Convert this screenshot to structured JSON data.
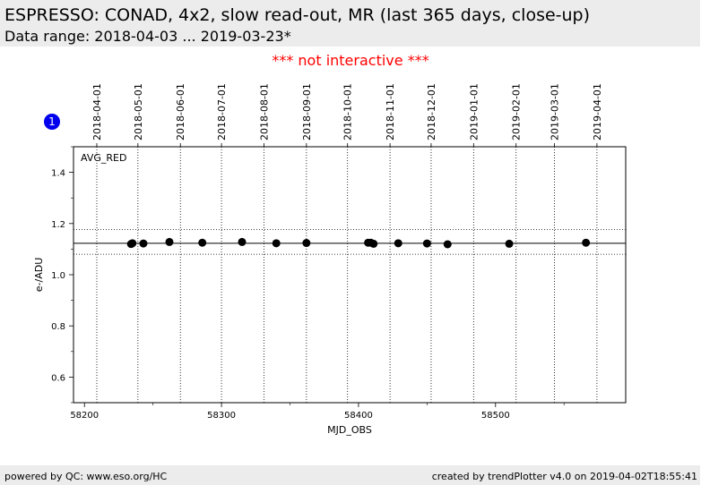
{
  "header": {
    "title": "ESPRESSO: CONAD, 4x2, slow read-out, MR (last 365 days, close-up)",
    "subtitle": "Data range: 2018-04-03 ... 2019-03-23*"
  },
  "notice": "*** not interactive ***",
  "footer": {
    "left": "powered by QC: www.eso.org/HC",
    "right": "created by trendPlotter v4.0 on 2019-04-02T18:55:41"
  },
  "badge": {
    "label": "1",
    "color": "#0000ee"
  },
  "chart_data": {
    "type": "scatter",
    "xlabel": "MJD_OBS",
    "ylabel": "e-/ADU",
    "annotation": "AVG_RED",
    "xlim": [
      58192,
      58595
    ],
    "ylim": [
      0.5,
      1.5
    ],
    "x_ticks": [
      58200,
      58300,
      58400,
      58500
    ],
    "y_ticks": [
      0.6,
      0.8,
      1.0,
      1.2,
      1.4
    ],
    "top_axis_dates": [
      {
        "label": "2018-04-01",
        "mjd": 58209
      },
      {
        "label": "2018-05-01",
        "mjd": 58239
      },
      {
        "label": "2018-06-01",
        "mjd": 58270
      },
      {
        "label": "2018-07-01",
        "mjd": 58300
      },
      {
        "label": "2018-08-01",
        "mjd": 58331
      },
      {
        "label": "2018-09-01",
        "mjd": 58362
      },
      {
        "label": "2018-10-01",
        "mjd": 58392
      },
      {
        "label": "2018-11-01",
        "mjd": 58423
      },
      {
        "label": "2018-12-01",
        "mjd": 58453
      },
      {
        "label": "2019-01-01",
        "mjd": 58484
      },
      {
        "label": "2019-02-01",
        "mjd": 58515
      },
      {
        "label": "2019-03-01",
        "mjd": 58543
      },
      {
        "label": "2019-04-01",
        "mjd": 58574
      }
    ],
    "reference_line": 1.123,
    "tolerance_lines": [
      1.08,
      1.177
    ],
    "grid": "vertical dotted at month starts",
    "points": [
      {
        "x": 58234,
        "y": 1.12
      },
      {
        "x": 58235,
        "y": 1.123
      },
      {
        "x": 58243,
        "y": 1.122
      },
      {
        "x": 58262,
        "y": 1.128
      },
      {
        "x": 58286,
        "y": 1.125
      },
      {
        "x": 58315,
        "y": 1.128
      },
      {
        "x": 58340,
        "y": 1.123
      },
      {
        "x": 58362,
        "y": 1.124
      },
      {
        "x": 58407,
        "y": 1.125
      },
      {
        "x": 58409,
        "y": 1.125
      },
      {
        "x": 58411,
        "y": 1.121
      },
      {
        "x": 58429,
        "y": 1.123
      },
      {
        "x": 58450,
        "y": 1.122
      },
      {
        "x": 58465,
        "y": 1.119
      },
      {
        "x": 58510,
        "y": 1.121
      },
      {
        "x": 58566,
        "y": 1.125
      }
    ],
    "marker_color": "#000000"
  }
}
